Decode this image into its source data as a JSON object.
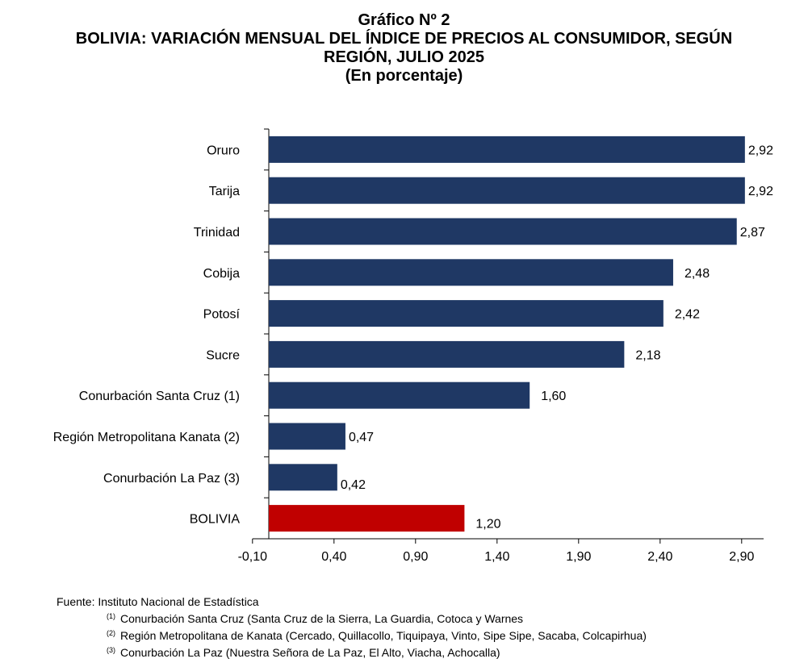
{
  "title": {
    "line1": "Gráfico Nº 2",
    "line2": "BOLIVIA: VARIACIÓN MENSUAL DEL ÍNDICE DE PRECIOS AL CONSUMIDOR, SEGÚN",
    "line3": "REGIÓN, JULIO 2025",
    "line4": "(En porcentaje)"
  },
  "colors": {
    "bar": "#1f3864",
    "highlight": "#c00000"
  },
  "chart_data": {
    "type": "bar",
    "orientation": "horizontal",
    "categories": [
      "Oruro",
      "Tarija",
      "Trinidad",
      "Cobija",
      "Potosí",
      "Sucre",
      "Conurbación Santa Cruz (1)",
      "Región Metropolitana Kanata (2)",
      "Conurbación La Paz (3)",
      "BOLIVIA"
    ],
    "values": [
      2.92,
      2.92,
      2.87,
      2.48,
      2.42,
      2.18,
      1.6,
      0.47,
      0.42,
      1.2
    ],
    "value_labels": [
      "2,92",
      "2,92",
      "2,87",
      "2,48",
      "2,42",
      "2,18",
      "1,60",
      "0,47",
      "0,42",
      "1,20"
    ],
    "highlight_category": "BOLIVIA",
    "xlim": [
      -0.1,
      3.0
    ],
    "xticks": [
      -0.1,
      0.4,
      0.9,
      1.4,
      1.9,
      2.4,
      2.9
    ],
    "xtick_labels": [
      "-0,10",
      "0,40",
      "0,90",
      "1,40",
      "1,90",
      "2,40",
      "2,90"
    ],
    "grid": false
  },
  "notes": {
    "source": "Fuente: Instituto Nacional de Estadística",
    "items": [
      {
        "mark": "(1)",
        "text": "Conurbación Santa Cruz (Santa Cruz de la Sierra, La Guardia, Cotoca y Warnes"
      },
      {
        "mark": "(2)",
        "text": "Región Metropolitana de Kanata (Cercado, Quillacollo, Tiquipaya, Vinto, Sipe Sipe, Sacaba, Colcapirhua)"
      },
      {
        "mark": "(3)",
        "text": "Conurbación La Paz (Nuestra Señora de La Paz, El Alto, Viacha, Achocalla)"
      }
    ]
  }
}
